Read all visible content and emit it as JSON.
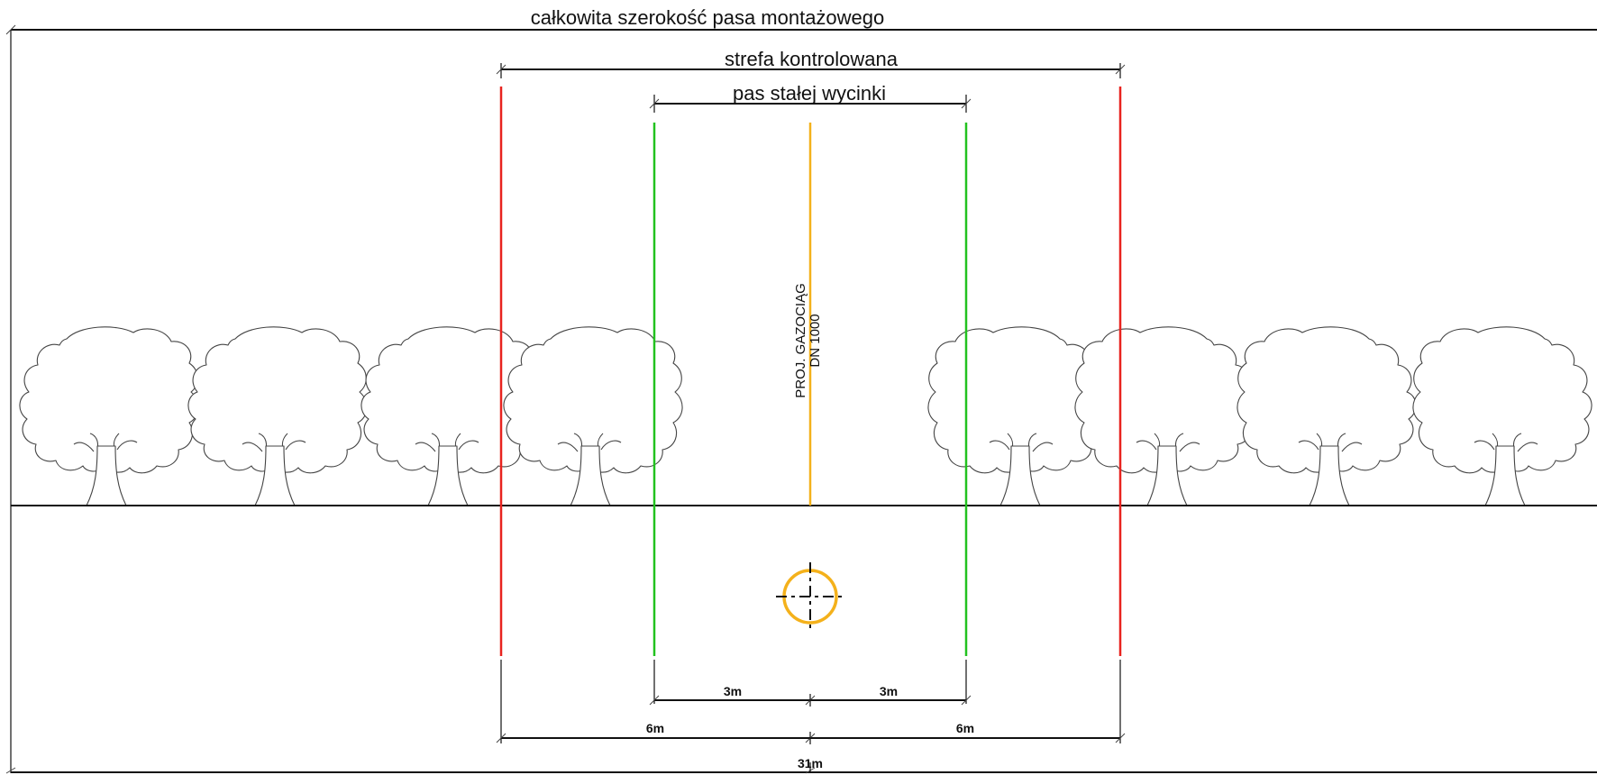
{
  "colors": {
    "background": "#ffffff",
    "line": "#111111",
    "controlled_zone_boundary": "#e8231f",
    "clearing_boundary": "#22c21f",
    "pipeline_axis": "#f4b11b"
  },
  "labels": {
    "total_width": "całkowita szerokość pasa montażowego",
    "controlled_zone": "strefa kontrolowana",
    "clearing_strip": "pas stałej wycinki",
    "pipeline_line1": "PROJ. GAZOCIĄG",
    "pipeline_line2": "DN 1000"
  },
  "dimensions": {
    "clear_left": "3m",
    "clear_right": "3m",
    "zone_left": "6m",
    "zone_right": "6m",
    "total": "31m"
  },
  "icons": {
    "tree": "deciduous-tree-icon",
    "pipe": "pipe-crosshair-icon"
  }
}
